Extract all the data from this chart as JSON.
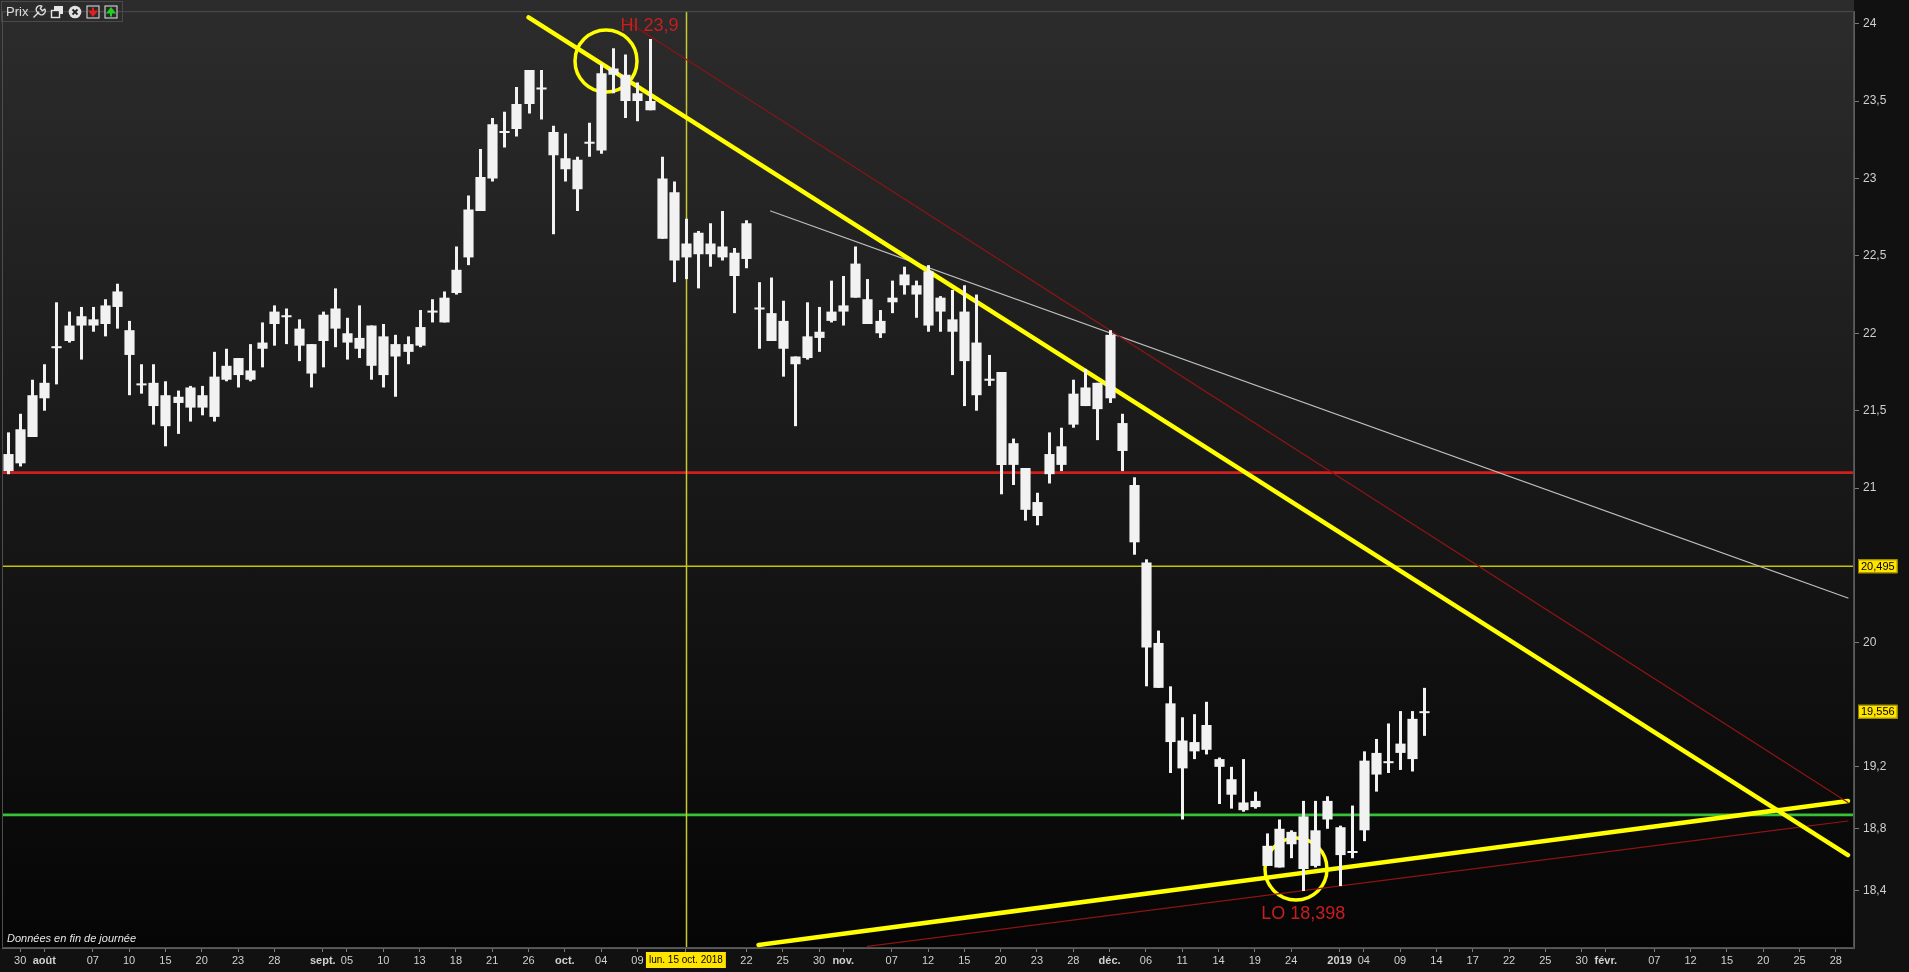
{
  "chart_data": {
    "type": "candlestick",
    "title": "Prix",
    "color": "#f2f2f2",
    "categories": [
      null,
      "30",
      null,
      "août",
      null,
      null,
      null,
      "07",
      null,
      null,
      "10",
      null,
      null,
      "15",
      null,
      null,
      "20",
      null,
      null,
      "23",
      null,
      null,
      "28",
      null,
      null,
      null,
      "sept.",
      null,
      "05",
      null,
      null,
      "10",
      null,
      null,
      "13",
      null,
      null,
      "18",
      null,
      null,
      "21",
      null,
      null,
      "26",
      null,
      null,
      "oct.",
      null,
      null,
      "04",
      null,
      null,
      "09",
      null,
      null,
      null,
      "lun. 15 oct. 2018",
      null,
      null,
      null,
      null,
      "22",
      null,
      null,
      "25",
      null,
      null,
      "30",
      null,
      "nov.",
      null,
      null,
      null,
      "07",
      null,
      null,
      "12",
      null,
      null,
      "15",
      null,
      null,
      "20",
      null,
      null,
      "23",
      null,
      null,
      "28",
      null,
      null,
      "déc.",
      null,
      null,
      "06",
      null,
      null,
      "11",
      null,
      null,
      "14",
      null,
      null,
      "19",
      null,
      null,
      "24",
      null,
      null,
      null,
      "2019",
      null,
      "04",
      null,
      null,
      "09",
      null,
      null,
      "14",
      null,
      null,
      "17",
      null,
      null,
      "22",
      null,
      null,
      "25",
      null,
      null,
      "30",
      null,
      "févr.",
      null,
      null,
      null,
      "07",
      null,
      null,
      "12",
      null,
      null,
      "15",
      null,
      null,
      "20",
      null,
      null,
      "25",
      null,
      null,
      "28",
      null
    ],
    "ohlc": [
      [
        21.11,
        21.36,
        21.09,
        21.22
      ],
      [
        21.16,
        21.48,
        21.14,
        21.38
      ],
      [
        21.33,
        21.7,
        21.33,
        21.6
      ],
      [
        21.58,
        21.8,
        21.5,
        21.68
      ],
      [
        21.91,
        22.2,
        21.67,
        21.91
      ],
      [
        21.95,
        22.14,
        21.94,
        22.05
      ],
      [
        22.05,
        22.17,
        21.83,
        22.11
      ],
      [
        22.05,
        22.17,
        22.01,
        22.09
      ],
      [
        22.06,
        22.22,
        21.98,
        22.18
      ],
      [
        22.17,
        22.32,
        22.03,
        22.27
      ],
      [
        21.86,
        22.08,
        21.6,
        22.02
      ],
      [
        21.67,
        21.8,
        21.61,
        21.67
      ],
      [
        21.53,
        21.8,
        21.41,
        21.68
      ],
      [
        21.4,
        21.69,
        21.27,
        21.6
      ],
      [
        21.55,
        21.63,
        21.35,
        21.59
      ],
      [
        21.52,
        21.66,
        21.43,
        21.65
      ],
      [
        21.52,
        21.66,
        21.47,
        21.6
      ],
      [
        21.46,
        21.88,
        21.43,
        21.72
      ],
      [
        21.7,
        21.9,
        21.69,
        21.79
      ],
      [
        21.73,
        21.84,
        21.65,
        21.84
      ],
      [
        21.7,
        21.93,
        21.69,
        21.76
      ],
      [
        21.9,
        22.07,
        21.78,
        21.94
      ],
      [
        22.06,
        22.18,
        21.92,
        22.14
      ],
      [
        22.11,
        22.16,
        21.93,
        22.11
      ],
      [
        21.92,
        22.09,
        21.82,
        22.03
      ],
      [
        21.74,
        21.93,
        21.65,
        21.93
      ],
      [
        21.95,
        22.14,
        21.78,
        22.12
      ],
      [
        22.03,
        22.29,
        21.91,
        22.16
      ],
      [
        21.94,
        22.1,
        21.83,
        22.0
      ],
      [
        21.9,
        22.18,
        21.84,
        21.97
      ],
      [
        21.79,
        22.05,
        21.7,
        22.05
      ],
      [
        21.73,
        22.06,
        21.65,
        21.98
      ],
      [
        21.85,
        21.99,
        21.59,
        21.93
      ],
      [
        21.88,
        21.98,
        21.8,
        21.93
      ],
      [
        21.92,
        22.15,
        21.91,
        22.04
      ],
      [
        22.14,
        22.22,
        22.07,
        22.14
      ],
      [
        22.07,
        22.27,
        22.07,
        22.23
      ],
      [
        22.26,
        22.56,
        22.25,
        22.41
      ],
      [
        22.49,
        22.89,
        22.44,
        22.8
      ],
      [
        22.79,
        23.19,
        22.79,
        23.01
      ],
      [
        23.0,
        23.39,
        22.98,
        23.35
      ],
      [
        23.3,
        23.43,
        23.2,
        23.3
      ],
      [
        23.32,
        23.59,
        23.27,
        23.48
      ],
      [
        23.48,
        23.7,
        23.42,
        23.7
      ],
      [
        23.58,
        23.7,
        23.38,
        23.58
      ],
      [
        23.15,
        23.34,
        22.64,
        23.3
      ],
      [
        23.06,
        23.29,
        22.98,
        23.13
      ],
      [
        22.93,
        23.14,
        22.79,
        23.12
      ],
      [
        23.23,
        23.36,
        23.14,
        23.23
      ],
      [
        23.18,
        23.74,
        23.16,
        23.68
      ],
      [
        23.67,
        23.84,
        23.55,
        23.71
      ],
      [
        23.5,
        23.8,
        23.39,
        23.67
      ],
      [
        23.5,
        23.62,
        23.37,
        23.55
      ],
      [
        23.44,
        23.9,
        23.44,
        23.5
      ],
      [
        22.61,
        23.14,
        22.61,
        23.0
      ],
      [
        22.47,
        22.98,
        22.33,
        22.91
      ],
      [
        22.49,
        22.74,
        22.35,
        22.58
      ],
      [
        22.51,
        22.66,
        22.29,
        22.65
      ],
      [
        22.51,
        22.71,
        22.43,
        22.58
      ],
      [
        22.49,
        22.79,
        22.47,
        22.56
      ],
      [
        22.37,
        22.55,
        22.13,
        22.52
      ],
      [
        22.48,
        22.73,
        22.42,
        22.71
      ],
      [
        22.16,
        22.33,
        21.9,
        22.16
      ],
      [
        21.95,
        22.36,
        21.95,
        22.13
      ],
      [
        21.9,
        22.21,
        21.72,
        22.08
      ],
      [
        21.8,
        21.85,
        21.4,
        21.85
      ],
      [
        21.84,
        22.2,
        21.83,
        21.98
      ],
      [
        21.97,
        22.17,
        21.88,
        22.01
      ],
      [
        22.08,
        22.34,
        22.07,
        22.14
      ],
      [
        22.14,
        22.37,
        22.05,
        22.18
      ],
      [
        22.23,
        22.56,
        22.23,
        22.45
      ],
      [
        22.06,
        22.35,
        22.06,
        22.22
      ],
      [
        22.0,
        22.15,
        21.97,
        22.08
      ],
      [
        22.2,
        22.34,
        22.13,
        22.23
      ],
      [
        22.31,
        22.43,
        22.25,
        22.38
      ],
      [
        22.25,
        22.34,
        22.1,
        22.31
      ],
      [
        22.05,
        22.44,
        22.01,
        22.4
      ],
      [
        22.14,
        22.24,
        22.01,
        22.23
      ],
      [
        22.01,
        22.28,
        21.73,
        22.09
      ],
      [
        21.82,
        22.31,
        21.53,
        22.14
      ],
      [
        21.6,
        22.25,
        21.5,
        21.94
      ],
      [
        21.7,
        21.86,
        21.66,
        21.7
      ],
      [
        21.15,
        21.75,
        20.96,
        21.75
      ],
      [
        21.15,
        21.32,
        21.02,
        21.29
      ],
      [
        20.86,
        21.13,
        20.79,
        21.13
      ],
      [
        20.82,
        20.97,
        20.76,
        20.91
      ],
      [
        21.09,
        21.36,
        21.03,
        21.22
      ],
      [
        21.15,
        21.39,
        21.11,
        21.27
      ],
      [
        21.41,
        21.7,
        21.39,
        21.61
      ],
      [
        21.53,
        21.77,
        21.53,
        21.65
      ],
      [
        21.51,
        21.68,
        21.31,
        21.68
      ],
      [
        21.58,
        22.02,
        21.55,
        21.99
      ],
      [
        21.24,
        21.48,
        21.11,
        21.42
      ],
      [
        20.65,
        21.07,
        20.57,
        21.02
      ],
      [
        19.97,
        20.54,
        19.72,
        20.52
      ],
      [
        19.71,
        20.08,
        19.71,
        20.0
      ],
      [
        19.36,
        19.72,
        19.16,
        19.61
      ],
      [
        19.19,
        19.52,
        18.86,
        19.37
      ],
      [
        19.3,
        19.54,
        19.25,
        19.36
      ],
      [
        19.31,
        19.62,
        19.28,
        19.47
      ],
      [
        19.2,
        19.26,
        18.96,
        19.25
      ],
      [
        19.02,
        19.2,
        18.93,
        19.12
      ],
      [
        18.92,
        19.25,
        18.91,
        18.97
      ],
      [
        18.94,
        19.04,
        18.93,
        18.98
      ],
      [
        18.56,
        18.77,
        18.56,
        18.69
      ],
      [
        18.55,
        18.86,
        18.55,
        18.8
      ],
      [
        18.7,
        18.79,
        18.61,
        18.78
      ],
      [
        18.54,
        18.98,
        18.398,
        18.88
      ],
      [
        18.56,
        18.98,
        18.55,
        18.79
      ],
      [
        18.86,
        19.01,
        18.8,
        18.98
      ],
      [
        18.63,
        18.82,
        18.43,
        18.81
      ],
      [
        18.65,
        18.95,
        18.61,
        18.65
      ],
      [
        18.79,
        19.3,
        18.72,
        19.24
      ],
      [
        19.15,
        19.38,
        19.04,
        19.29
      ],
      [
        19.23,
        19.48,
        19.16,
        19.23
      ],
      [
        19.29,
        19.56,
        19.18,
        19.35
      ],
      [
        19.25,
        19.56,
        19.17,
        19.51
      ],
      [
        19.55,
        19.71,
        19.4,
        19.556
      ],
      null,
      null,
      null,
      null,
      null,
      null,
      null,
      null,
      null,
      null,
      null,
      null,
      null,
      null,
      null,
      null,
      null,
      null,
      null,
      null,
      null,
      null,
      null,
      null,
      null,
      null,
      null,
      null,
      null,
      null,
      null,
      null,
      null,
      null,
      null
    ],
    "series": [
      {
        "type": "line",
        "color": "#ffff00",
        "values": [
          null,
          null,
          null,
          null,
          null,
          null,
          null,
          null,
          null,
          null,
          null,
          null,
          null,
          null,
          null,
          null,
          null,
          null,
          null,
          null,
          null,
          null,
          null,
          null,
          null,
          null,
          null,
          null,
          null,
          null,
          null,
          null,
          null,
          null,
          null,
          null,
          null,
          null,
          null,
          null,
          null,
          null,
          null,
          24.04,
          null,
          null,
          null,
          null,
          null,
          null,
          null,
          null,
          null,
          null,
          null,
          null,
          null,
          null,
          null,
          null,
          null,
          null,
          null,
          null,
          null,
          null,
          null,
          null,
          null,
          null,
          null,
          null,
          null,
          null,
          null,
          null,
          null,
          null,
          null,
          null,
          null,
          null,
          null,
          null,
          null,
          null,
          null,
          null,
          null,
          null,
          null,
          null,
          null,
          null,
          null,
          null,
          null,
          null,
          null,
          null,
          null,
          null,
          null,
          null,
          null,
          null,
          null,
          null,
          null,
          null,
          null,
          null,
          null,
          null,
          null,
          null,
          null,
          null,
          null,
          null,
          null,
          null,
          null,
          null,
          null,
          null,
          null,
          null,
          null,
          null,
          null,
          null,
          null,
          null,
          null,
          null,
          null,
          null,
          null,
          null,
          null,
          null,
          null,
          null,
          null,
          null,
          null,
          null,
          null,
          null,
          null,
          null,
          18.63
        ]
      },
      {
        "type": "line",
        "color": "#8e1414",
        "values": [
          null,
          null,
          null,
          null,
          null,
          null,
          null,
          null,
          null,
          null,
          null,
          null,
          null,
          null,
          null,
          null,
          null,
          null,
          null,
          null,
          null,
          null,
          null,
          null,
          null,
          null,
          null,
          null,
          null,
          null,
          null,
          null,
          null,
          null,
          null,
          null,
          null,
          null,
          null,
          null,
          null,
          null,
          null,
          null,
          null,
          null,
          null,
          null,
          null,
          null,
          null,
          24.02,
          null,
          null,
          null,
          null,
          null,
          null,
          null,
          null,
          null,
          null,
          null,
          null,
          null,
          null,
          null,
          null,
          null,
          null,
          null,
          null,
          null,
          null,
          null,
          null,
          null,
          null,
          null,
          null,
          null,
          null,
          null,
          null,
          null,
          null,
          null,
          null,
          null,
          null,
          null,
          null,
          null,
          null,
          null,
          null,
          null,
          null,
          null,
          null,
          null,
          null,
          null,
          null,
          null,
          null,
          null,
          null,
          null,
          null,
          null,
          null,
          null,
          null,
          null,
          null,
          null,
          null,
          null,
          null,
          null,
          null,
          null,
          null,
          null,
          null,
          null,
          null,
          null,
          null,
          null,
          null,
          null,
          null,
          null,
          null,
          null,
          null,
          null,
          null,
          null,
          null,
          null,
          null,
          null,
          null,
          null,
          null,
          null,
          null,
          null,
          null,
          18.97
        ]
      },
      {
        "type": "line",
        "color": "#bdbdbd",
        "values": [
          null,
          null,
          null,
          null,
          null,
          null,
          null,
          null,
          null,
          null,
          null,
          null,
          null,
          null,
          null,
          null,
          null,
          null,
          null,
          null,
          null,
          null,
          null,
          null,
          null,
          null,
          null,
          null,
          null,
          null,
          null,
          null,
          null,
          null,
          null,
          null,
          null,
          null,
          null,
          null,
          null,
          null,
          null,
          null,
          null,
          null,
          null,
          null,
          null,
          null,
          null,
          null,
          null,
          null,
          null,
          null,
          null,
          null,
          null,
          null,
          null,
          null,
          null,
          22.79,
          null,
          null,
          null,
          null,
          null,
          null,
          null,
          null,
          null,
          null,
          null,
          null,
          null,
          null,
          null,
          null,
          null,
          null,
          null,
          null,
          null,
          null,
          null,
          null,
          null,
          null,
          null,
          null,
          null,
          null,
          null,
          null,
          null,
          null,
          null,
          null,
          null,
          null,
          null,
          null,
          null,
          null,
          null,
          null,
          null,
          null,
          null,
          null,
          null,
          null,
          null,
          null,
          null,
          null,
          null,
          null,
          null,
          null,
          null,
          null,
          null,
          null,
          null,
          null,
          null,
          null,
          null,
          null,
          null,
          null,
          null,
          null,
          null,
          null,
          null,
          null,
          null,
          null,
          null,
          null,
          null,
          null,
          null,
          null,
          null,
          null,
          null,
          null,
          20.29
        ]
      },
      {
        "type": "line",
        "color": "#ffff00",
        "values": [
          null,
          null,
          null,
          null,
          null,
          null,
          null,
          null,
          null,
          null,
          null,
          null,
          null,
          null,
          null,
          null,
          null,
          null,
          null,
          null,
          null,
          null,
          null,
          null,
          null,
          null,
          null,
          null,
          null,
          null,
          null,
          null,
          null,
          null,
          null,
          null,
          null,
          null,
          null,
          null,
          null,
          null,
          null,
          null,
          null,
          null,
          null,
          null,
          null,
          null,
          null,
          null,
          null,
          null,
          null,
          null,
          null,
          null,
          null,
          null,
          null,
          null,
          18.05,
          null,
          null,
          null,
          null,
          null,
          null,
          null,
          null,
          null,
          null,
          null,
          null,
          null,
          null,
          null,
          null,
          null,
          null,
          null,
          null,
          null,
          null,
          null,
          null,
          null,
          null,
          null,
          null,
          null,
          null,
          null,
          null,
          null,
          null,
          null,
          null,
          null,
          null,
          null,
          null,
          null,
          null,
          null,
          null,
          null,
          null,
          null,
          null,
          null,
          null,
          null,
          null,
          null,
          null,
          null,
          null,
          null,
          null,
          null,
          null,
          null,
          null,
          null,
          null,
          null,
          null,
          null,
          null,
          null,
          null,
          null,
          null,
          null,
          null,
          null,
          null,
          null,
          null,
          null,
          null,
          null,
          null,
          null,
          null,
          null,
          null,
          null,
          null,
          null,
          18.98
        ]
      },
      {
        "type": "line",
        "color": "#8e1414",
        "values": [
          null,
          null,
          null,
          null,
          null,
          null,
          null,
          null,
          null,
          null,
          null,
          null,
          null,
          null,
          null,
          null,
          null,
          null,
          null,
          null,
          null,
          null,
          null,
          null,
          null,
          null,
          null,
          null,
          null,
          null,
          null,
          null,
          null,
          null,
          null,
          null,
          null,
          null,
          null,
          null,
          null,
          null,
          null,
          null,
          null,
          null,
          null,
          null,
          null,
          null,
          null,
          null,
          null,
          null,
          null,
          null,
          null,
          null,
          null,
          null,
          null,
          null,
          null,
          null,
          null,
          null,
          null,
          null,
          null,
          null,
          null,
          18.04,
          null,
          null,
          null,
          null,
          null,
          null,
          null,
          null,
          null,
          null,
          null,
          null,
          null,
          null,
          null,
          null,
          null,
          null,
          null,
          null,
          null,
          null,
          null,
          null,
          null,
          null,
          null,
          null,
          null,
          null,
          null,
          null,
          null,
          null,
          null,
          null,
          null,
          null,
          null,
          null,
          null,
          null,
          null,
          null,
          null,
          null,
          null,
          null,
          null,
          null,
          null,
          null,
          null,
          null,
          null,
          null,
          null,
          null,
          null,
          null,
          null,
          null,
          null,
          null,
          null,
          null,
          null,
          null,
          null,
          null,
          null,
          null,
          null,
          null,
          null,
          null,
          null,
          null,
          null,
          null,
          18.85
        ]
      }
    ],
    "ylim": [
      18.03,
      24.08
    ],
    "yticks": [
      24,
      {
        "value": 23.5,
        "label": "23,5"
      },
      23,
      {
        "value": 22.5,
        "label": "22,5"
      },
      22,
      {
        "value": 21.5,
        "label": "21,5"
      },
      21,
      20,
      {
        "value": 19.2,
        "label": "19,2"
      },
      {
        "value": 18.8,
        "label": "18,8"
      },
      {
        "value": 18.4,
        "label": "18,4"
      }
    ],
    "ref_lines": [
      {
        "axis": "y",
        "value": 21.1,
        "color": "#d01e1e"
      },
      {
        "axis": "y",
        "value": 20.495,
        "label": "20,495",
        "color": "#c4c400"
      },
      {
        "axis": "y",
        "value": 18.89,
        "color": "#37c137"
      },
      {
        "axis": "x",
        "value": "lun. 15 oct. 2018",
        "color": "#c8c832"
      }
    ],
    "annotations": [
      "Données en fin de journée",
      {
        "text": "HI 23,9",
        "y": 23.9
      },
      {
        "text": "LO 18,398",
        "y": 18.398
      },
      "19,556"
    ]
  }
}
